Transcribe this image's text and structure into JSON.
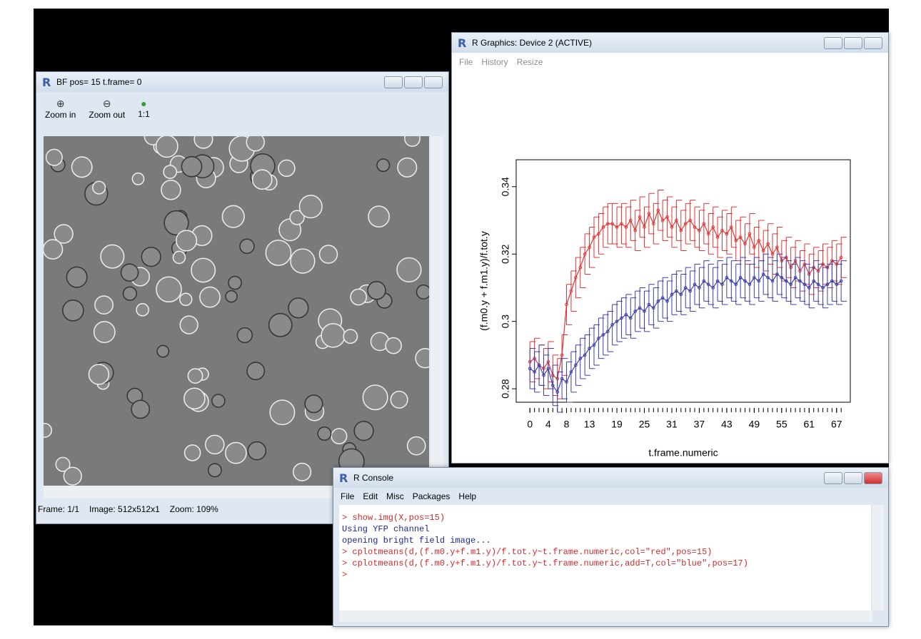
{
  "image_window": {
    "title": "BF pos= 15 t.frame= 0",
    "toolbar": [
      "Zoom in",
      "Zoom out",
      "1:1"
    ],
    "status": [
      "Frame: 1/1",
      "Image: 512x512x1",
      "Zoom: 109%"
    ]
  },
  "graphics_window": {
    "title": "R Graphics: Device 2 (ACTIVE)",
    "menu": [
      "File",
      "History",
      "Resize"
    ]
  },
  "console": {
    "title": "R Console",
    "menu": [
      "File",
      "Edit",
      "Misc",
      "Packages",
      "Help"
    ],
    "lines": [
      {
        "text": "> show.img(X,pos=15)",
        "color": "#d42a2a"
      },
      {
        "text": "Using YFP channel",
        "color": "#1c2a96"
      },
      {
        "text": "opening bright field image...",
        "color": "#1c2a96"
      },
      {
        "text": "> cplotmeans(d,(f.m0.y+f.m1.y)/f.tot.y~t.frame.numeric,col=\"red\",pos=15)",
        "color": "#d42a2a"
      },
      {
        "text": "> cplotmeans(d,(f.m0.y+f.m1.y)/f.tot.y~t.frame.numeric,add=T,col=\"blue\",pos=17)",
        "color": "#d42a2a"
      },
      {
        "text": ">",
        "color": "#d42a2a"
      }
    ]
  },
  "chart_data": {
    "type": "line",
    "x_label": "t.frame.numeric",
    "y_label": "(f.m0.y + f.m1.y)/f.tot.y",
    "xlim": [
      -3,
      70
    ],
    "ylim": [
      0.276,
      0.348
    ],
    "xticks": [
      0,
      4,
      8,
      13,
      19,
      25,
      31,
      37,
      43,
      49,
      55,
      61,
      67
    ],
    "yticks": [
      0.28,
      0.3,
      0.32,
      0.34
    ],
    "x": [
      0,
      1,
      2,
      3,
      4,
      5,
      6,
      7,
      8,
      9,
      10,
      11,
      12,
      13,
      14,
      15,
      16,
      17,
      18,
      19,
      20,
      21,
      22,
      23,
      24,
      25,
      26,
      27,
      28,
      29,
      30,
      31,
      32,
      33,
      34,
      35,
      36,
      37,
      38,
      39,
      40,
      41,
      42,
      43,
      44,
      45,
      46,
      47,
      48,
      49,
      50,
      51,
      52,
      53,
      54,
      55,
      56,
      57,
      58,
      59,
      60,
      61,
      62,
      63,
      64,
      65,
      66,
      67,
      68
    ],
    "series": [
      {
        "color": "#e03434",
        "error": 0.006,
        "values": [
          0.288,
          0.289,
          0.287,
          0.286,
          0.288,
          0.284,
          0.283,
          0.29,
          0.305,
          0.309,
          0.313,
          0.316,
          0.32,
          0.322,
          0.325,
          0.326,
          0.328,
          0.329,
          0.329,
          0.328,
          0.329,
          0.328,
          0.33,
          0.327,
          0.331,
          0.328,
          0.332,
          0.329,
          0.333,
          0.33,
          0.331,
          0.328,
          0.33,
          0.327,
          0.329,
          0.33,
          0.328,
          0.327,
          0.329,
          0.326,
          0.328,
          0.325,
          0.327,
          0.326,
          0.328,
          0.324,
          0.325,
          0.323,
          0.326,
          0.322,
          0.324,
          0.321,
          0.323,
          0.32,
          0.322,
          0.318,
          0.319,
          0.316,
          0.318,
          0.315,
          0.317,
          0.314,
          0.316,
          0.315,
          0.317,
          0.316,
          0.318,
          0.317,
          0.319
        ]
      },
      {
        "color": "#3a3eaa",
        "error": 0.006,
        "values": [
          0.286,
          0.285,
          0.287,
          0.284,
          0.286,
          0.281,
          0.279,
          0.283,
          0.282,
          0.285,
          0.287,
          0.289,
          0.29,
          0.292,
          0.293,
          0.295,
          0.296,
          0.297,
          0.299,
          0.3,
          0.301,
          0.302,
          0.301,
          0.303,
          0.304,
          0.303,
          0.305,
          0.304,
          0.306,
          0.307,
          0.306,
          0.308,
          0.309,
          0.308,
          0.31,
          0.309,
          0.311,
          0.31,
          0.312,
          0.311,
          0.31,
          0.312,
          0.311,
          0.313,
          0.312,
          0.311,
          0.313,
          0.312,
          0.311,
          0.313,
          0.312,
          0.314,
          0.313,
          0.312,
          0.314,
          0.313,
          0.312,
          0.311,
          0.313,
          0.312,
          0.311,
          0.31,
          0.312,
          0.311,
          0.31,
          0.311,
          0.312,
          0.311,
          0.312
        ]
      }
    ]
  }
}
